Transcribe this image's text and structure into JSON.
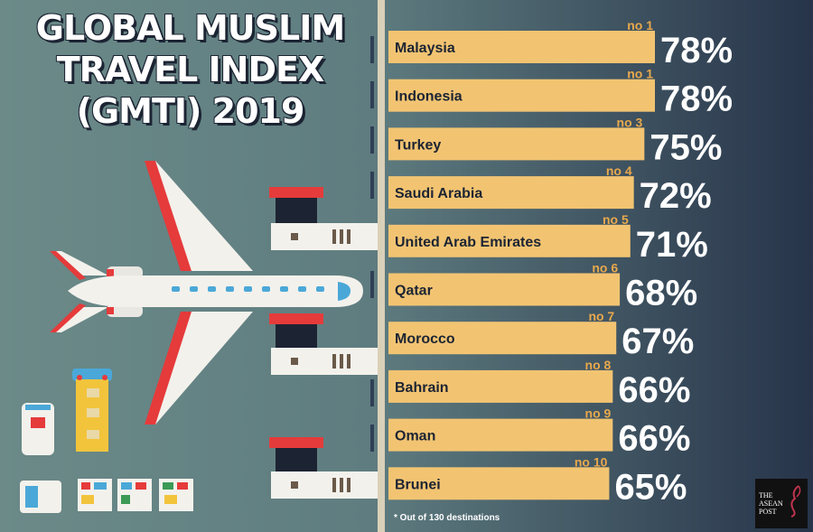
{
  "title": {
    "line1": "GLOBAL MUSLIM",
    "line2": "TRAVEL INDEX",
    "line3": "(GMTI) 2019"
  },
  "colors": {
    "bar": "#f2c472",
    "rank_text": "#e8a84c",
    "value_text": "#ffffff",
    "background_left": "#6b8a88",
    "background_right": "#27344a",
    "plane_accent": "#e03b3b",
    "window": "#4aa8d8"
  },
  "chart_data": {
    "type": "bar",
    "orientation": "horizontal",
    "categories": [
      "Malaysia",
      "Indonesia",
      "Turkey",
      "Saudi Arabia",
      "United Arab Emirates",
      "Qatar",
      "Morocco",
      "Bahrain",
      "Oman",
      "Brunei"
    ],
    "ranks": [
      "no 1",
      "no 1",
      "no 3",
      "no 4",
      "no 5",
      "no 6",
      "no 7",
      "no 8",
      "no 9",
      "no 10"
    ],
    "values": [
      78,
      78,
      75,
      72,
      71,
      68,
      67,
      66,
      66,
      65
    ],
    "value_labels": [
      "78%",
      "78%",
      "75%",
      "72%",
      "71%",
      "68%",
      "67%",
      "66%",
      "66%",
      "65%"
    ],
    "xlim": [
      0,
      78
    ]
  },
  "footnote": "* Out of 130 destinations",
  "logo": {
    "line1": "THE",
    "line2": "ASEAN",
    "line3": "POST"
  }
}
